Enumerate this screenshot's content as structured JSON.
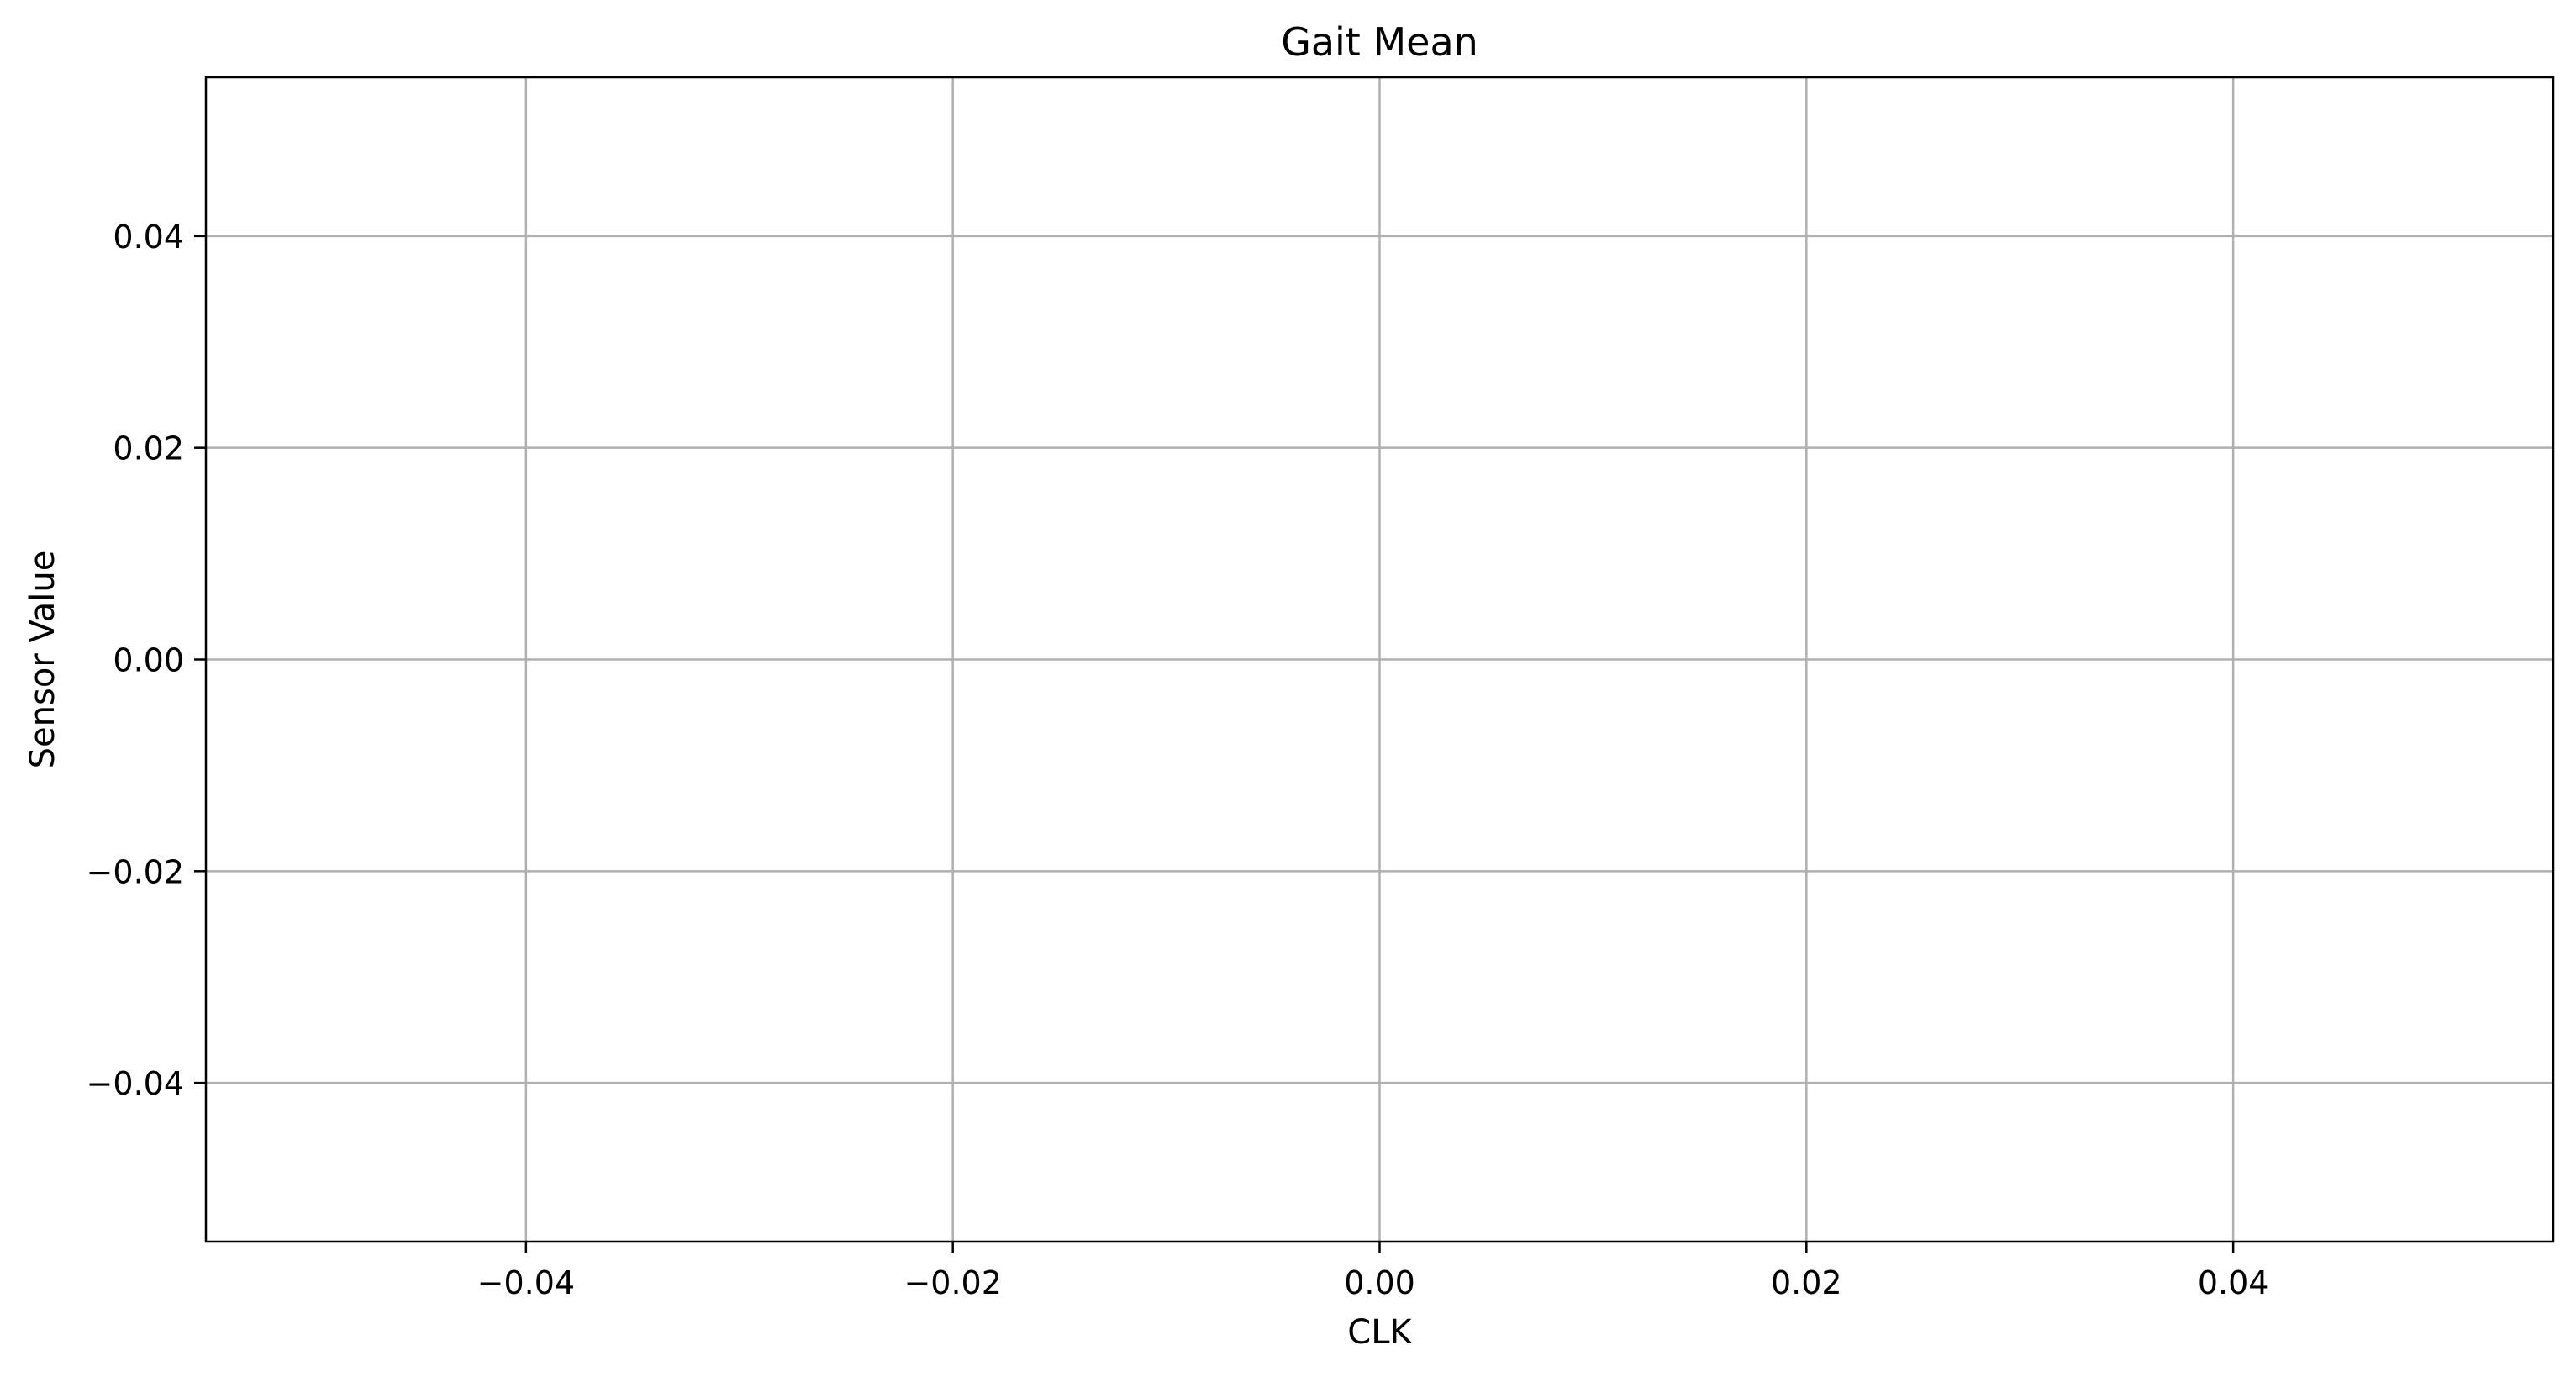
{
  "chart_data": {
    "type": "line",
    "title": "Gait Mean",
    "xlabel": "CLK",
    "ylabel": "Sensor Value",
    "xlim": [
      -0.055,
      0.055
    ],
    "ylim": [
      -0.055,
      0.055
    ],
    "x_ticks": [
      -0.04,
      -0.02,
      0.0,
      0.02,
      0.04
    ],
    "x_tick_labels": [
      "−0.04",
      "−0.02",
      "0.00",
      "0.02",
      "0.04"
    ],
    "y_ticks": [
      0.04,
      0.02,
      0.0,
      -0.02,
      -0.04
    ],
    "y_tick_labels": [
      "0.04",
      "0.02",
      "0.00",
      "−0.02",
      "−0.04"
    ],
    "grid": true,
    "series": [],
    "colors": {
      "grid": "#b0b0b0",
      "axes": "#000000",
      "background": "#ffffff"
    }
  }
}
